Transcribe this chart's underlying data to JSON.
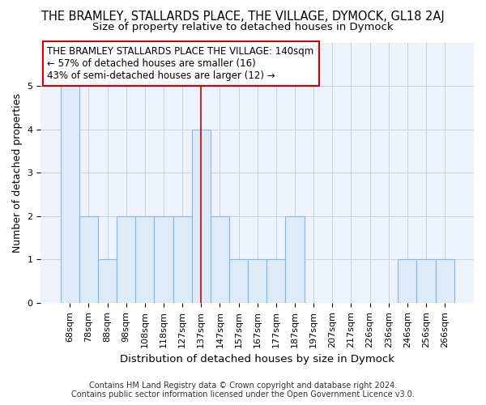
{
  "title": "THE BRAMLEY, STALLARDS PLACE, THE VILLAGE, DYMOCK, GL18 2AJ",
  "subtitle": "Size of property relative to detached houses in Dymock",
  "xlabel": "Distribution of detached houses by size in Dymock",
  "ylabel": "Number of detached properties",
  "footer_line1": "Contains HM Land Registry data © Crown copyright and database right 2024.",
  "footer_line2": "Contains public sector information licensed under the Open Government Licence v3.0.",
  "annotation_line1": "THE BRAMLEY STALLARDS PLACE THE VILLAGE: 140sqm",
  "annotation_line2": "← 57% of detached houses are smaller (16)",
  "annotation_line3": "43% of semi-detached houses are larger (12) →",
  "bins": [
    "68sqm",
    "78sqm",
    "88sqm",
    "98sqm",
    "108sqm",
    "118sqm",
    "127sqm",
    "137sqm",
    "147sqm",
    "157sqm",
    "167sqm",
    "177sqm",
    "187sqm",
    "197sqm",
    "207sqm",
    "217sqm",
    "226sqm",
    "236sqm",
    "246sqm",
    "256sqm",
    "266sqm"
  ],
  "values": [
    5,
    2,
    1,
    2,
    2,
    2,
    2,
    4,
    2,
    1,
    1,
    1,
    2,
    0,
    0,
    0,
    0,
    0,
    1,
    1,
    1
  ],
  "bar_color": "#ddeaf8",
  "bar_edge_color": "#8ab4d8",
  "highlight_bar_index": 7,
  "highlight_line_color": "#cc0000",
  "annotation_box_edge_color": "#cc0000",
  "background_color": "#edf2fb",
  "grid_color": "#c8d0e0",
  "ylim": [
    0,
    6
  ],
  "yticks": [
    0,
    1,
    2,
    3,
    4,
    5
  ],
  "title_fontsize": 10.5,
  "subtitle_fontsize": 9.5,
  "xlabel_fontsize": 9.5,
  "ylabel_fontsize": 9,
  "tick_fontsize": 8,
  "annotation_fontsize": 8.5,
  "footer_fontsize": 7
}
